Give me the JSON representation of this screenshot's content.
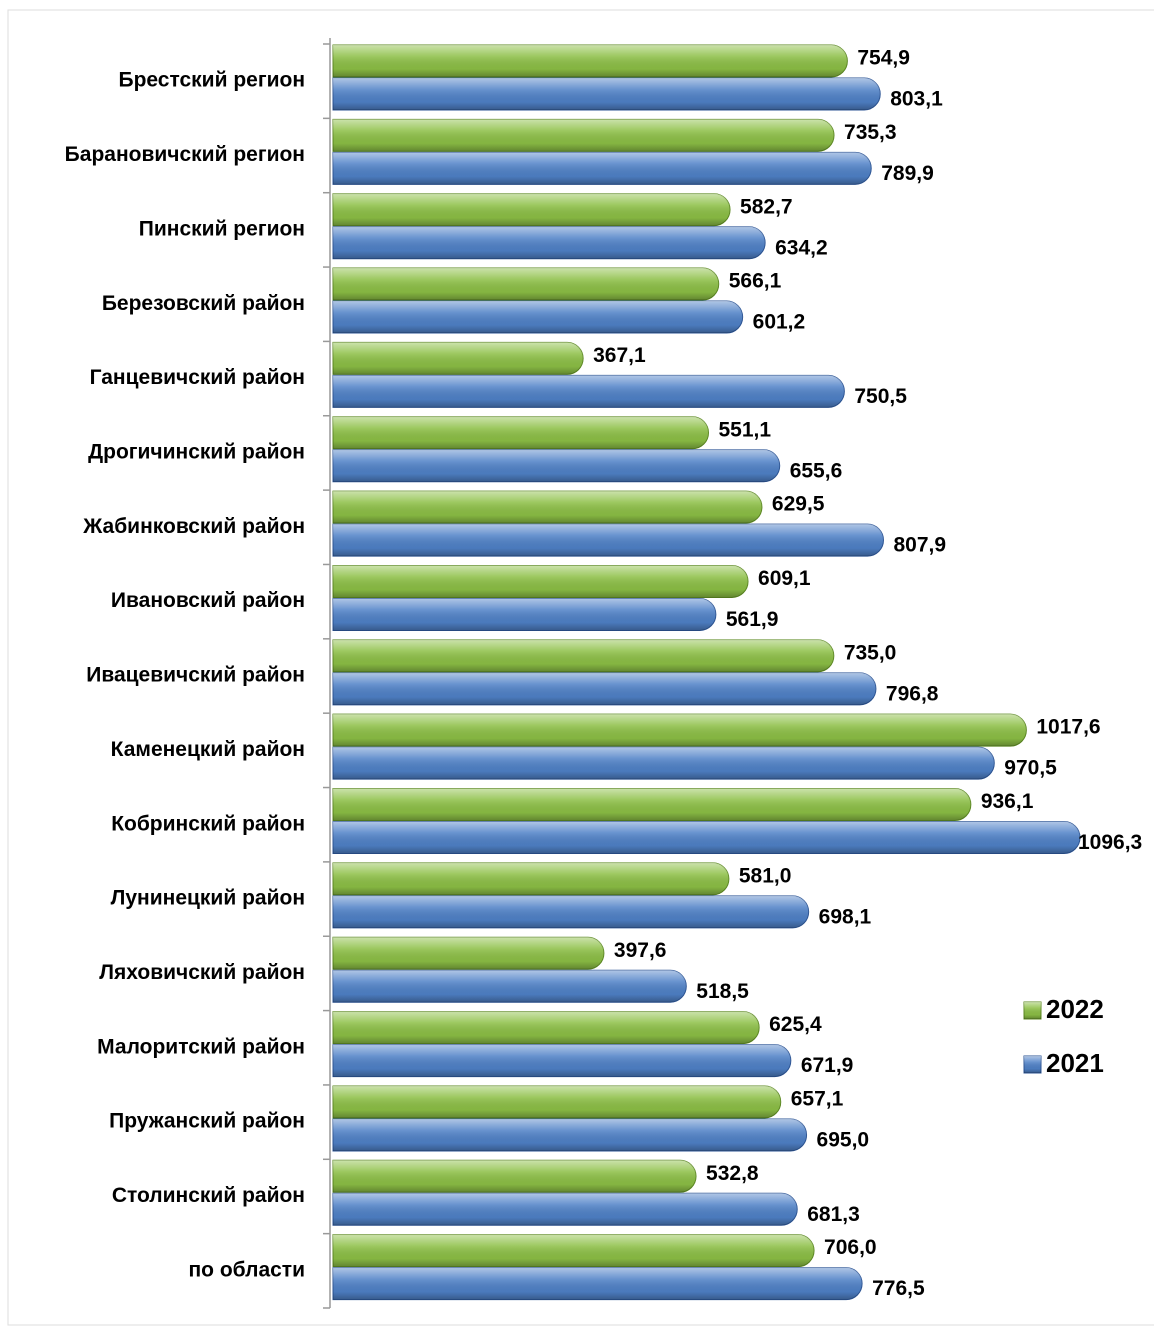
{
  "chart_data": {
    "type": "bar",
    "orientation": "horizontal",
    "categories": [
      "Брестский регион",
      "Барановичский регион",
      "Пинский регион",
      "Березовский район",
      "Ганцевичский район",
      "Дрогичинский район",
      "Жабинковский район",
      "Ивановский район",
      "Ивацевичский район",
      "Каменецкий район",
      "Кобринский район",
      "Лунинецкий район",
      "Ляховичский район",
      "Малоритский район",
      "Пружанский район",
      "Столинский район",
      "по области"
    ],
    "series": [
      {
        "name": "2022",
        "color": "#8cbf45",
        "values": [
          754.9,
          735.3,
          582.7,
          566.1,
          367.1,
          551.1,
          629.5,
          609.1,
          735.0,
          1017.6,
          936.1,
          581.0,
          397.6,
          625.4,
          657.1,
          532.8,
          706.0
        ],
        "value_labels": [
          "754,9",
          "735,3",
          "582,7",
          "566,1",
          "367,1",
          "551,1",
          "629,5",
          "609,1",
          "735,0",
          "1017,6",
          "936,1",
          "581,0",
          "397,6",
          "625,4",
          "657,1",
          "532,8",
          "706,0"
        ]
      },
      {
        "name": "2021",
        "color": "#4f81c7",
        "values": [
          803.1,
          789.9,
          634.2,
          601.2,
          750.5,
          655.6,
          807.9,
          561.9,
          796.8,
          970.5,
          1096.3,
          698.1,
          518.5,
          671.9,
          695.0,
          681.3,
          776.5
        ],
        "value_labels": [
          "803,1",
          "789,9",
          "634,2",
          "601,2",
          "750,5",
          "655,6",
          "807,9",
          "561,9",
          "796,8",
          "970,5",
          "1096,3",
          "698,1",
          "518,5",
          "671,9",
          "695,0",
          "681,3",
          "776,5"
        ]
      }
    ],
    "legend": "right"
  }
}
